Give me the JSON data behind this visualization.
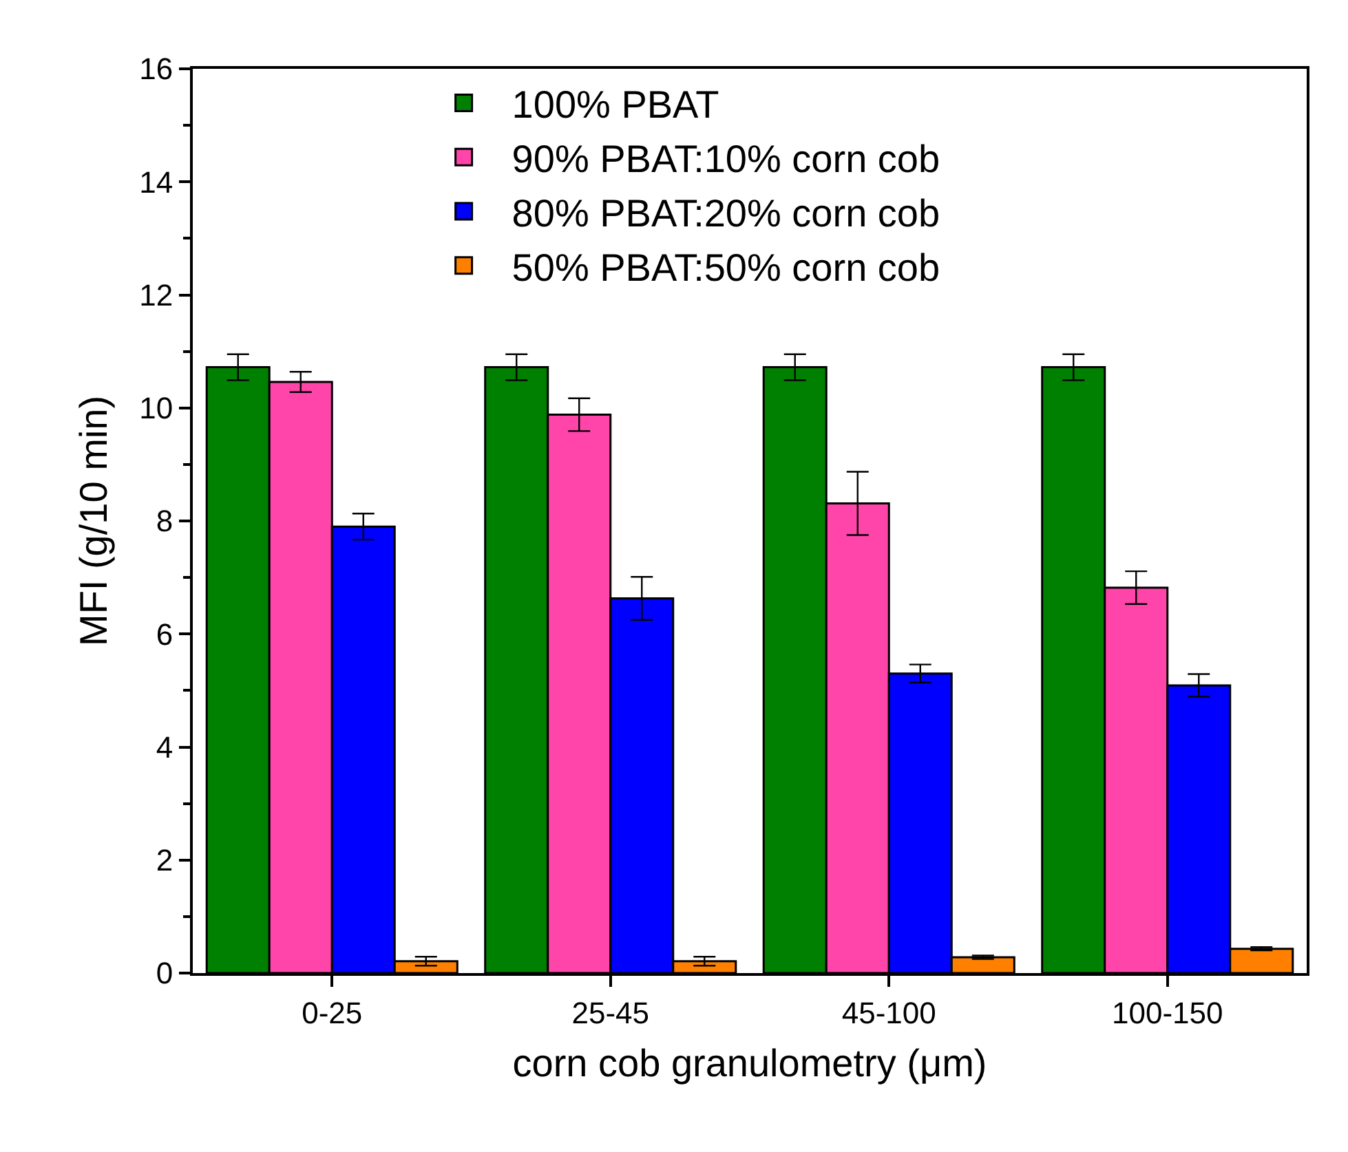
{
  "chart_data": {
    "type": "bar",
    "xlabel": "corn cob granulometry (μm)",
    "ylabel": "MFI (g/10 min)",
    "categories": [
      "0-25",
      "25-45",
      "45-100",
      "100-150"
    ],
    "ylim": [
      0,
      16
    ],
    "yticks": [
      0,
      2,
      4,
      6,
      8,
      10,
      12,
      14,
      16
    ],
    "legend": "top left",
    "series": [
      {
        "name": "100% PBAT",
        "color": "#008000",
        "values": [
          10.72,
          10.72,
          10.72,
          10.72
        ],
        "errors": [
          0.23,
          0.23,
          0.23,
          0.23
        ]
      },
      {
        "name": "90% PBAT:10% corn cob",
        "color": "#ff44aa",
        "values": [
          10.46,
          9.88,
          8.31,
          6.82
        ],
        "errors": [
          0.18,
          0.29,
          0.56,
          0.29
        ]
      },
      {
        "name": "80% PBAT:20% corn cob",
        "color": "#0000ff",
        "values": [
          7.9,
          6.63,
          5.3,
          5.09
        ],
        "errors": [
          0.23,
          0.38,
          0.16,
          0.2
        ]
      },
      {
        "name": "50% PBAT:50% corn cob",
        "color": "#ff8000",
        "values": [
          0.21,
          0.21,
          0.28,
          0.43
        ],
        "errors": [
          0.08,
          0.08,
          0.03,
          0.03
        ]
      }
    ]
  }
}
